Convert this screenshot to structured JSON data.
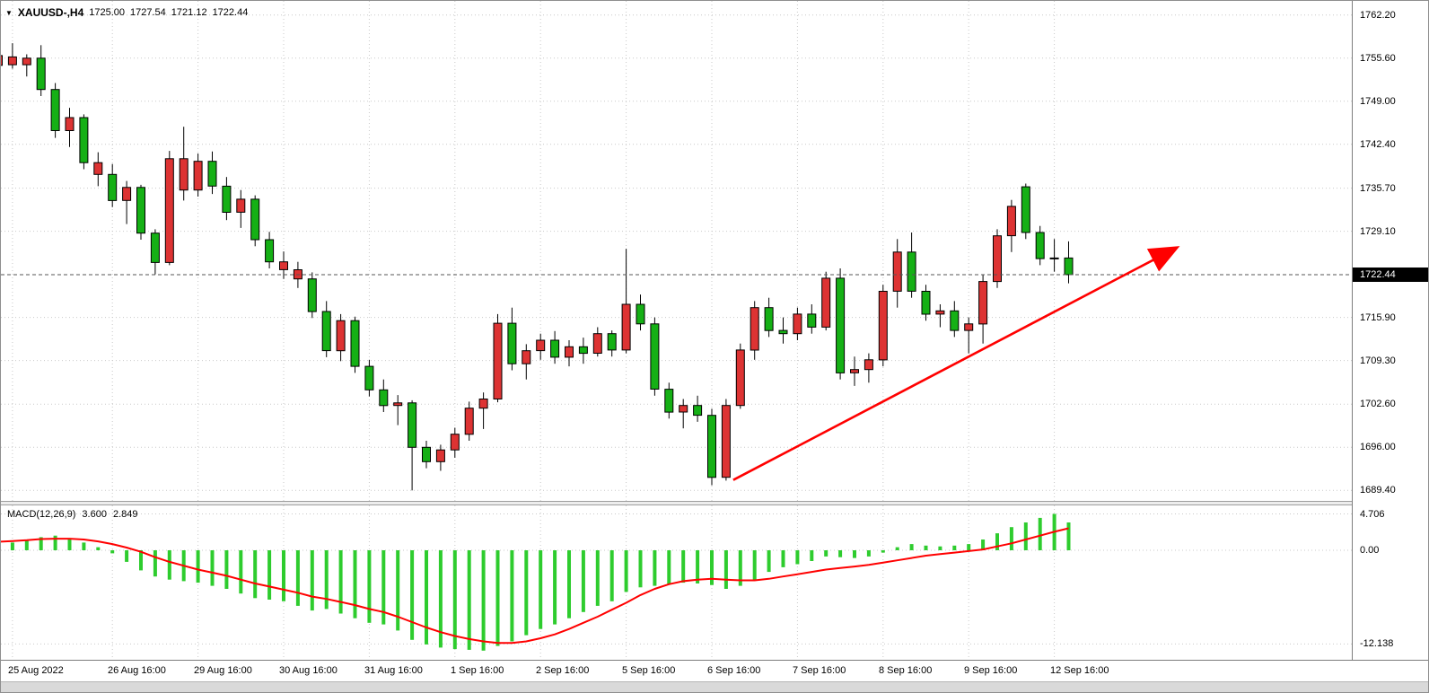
{
  "header": {
    "collapse": "▼",
    "symbol_period": "XAUUSD-,H4",
    "o": "1725.00",
    "h": "1727.54",
    "l": "1721.12",
    "c": "1722.44"
  },
  "indicator_header": {
    "name": "MACD(12,26,9)",
    "macd": "3.600",
    "signal": "2.849"
  },
  "price_tag": "1722.44",
  "colors": {
    "candle_green": "#15b015",
    "candle_red": "#dd3333",
    "macd_histogram": "#2ecc2e",
    "signal_line": "#ff0000",
    "arrow": "#ff0000",
    "grid": "#c9c9c9",
    "price_line": "#555555",
    "tag_bg": "#000000",
    "tag_text": "#ffffff"
  },
  "chart_data": [
    {
      "type": "candlestick",
      "title": "XAUUSD-,H4",
      "symbol": "XAUUSD-",
      "timeframe": "H4",
      "current": {
        "open": 1725.0,
        "high": 1727.54,
        "low": 1721.12,
        "close": 1722.44
      },
      "ylim": [
        1687.8,
        1764.4
      ],
      "y_ticks": [
        {
          "value": 1762.2,
          "label": "1762.20"
        },
        {
          "value": 1755.6,
          "label": "1755.60"
        },
        {
          "value": 1749.0,
          "label": "1749.00"
        },
        {
          "value": 1742.4,
          "label": "1742.40"
        },
        {
          "value": 1735.7,
          "label": "1735.70"
        },
        {
          "value": 1729.1,
          "label": "1729.10"
        },
        {
          "value": 1715.9,
          "label": "1715.90"
        },
        {
          "value": 1709.3,
          "label": "1709.30"
        },
        {
          "value": 1702.6,
          "label": "1702.60"
        },
        {
          "value": 1696.0,
          "label": "1696.00"
        },
        {
          "value": 1689.4,
          "label": "1689.40"
        }
      ],
      "x_ticks": [
        {
          "i": 1,
          "label": "25 Aug 2022"
        },
        {
          "i": 8,
          "label": "26 Aug 16:00"
        },
        {
          "i": 14,
          "label": "29 Aug 16:00"
        },
        {
          "i": 20,
          "label": "30 Aug 16:00"
        },
        {
          "i": 26,
          "label": "31 Aug 16:00"
        },
        {
          "i": 32,
          "label": "1 Sep 16:00"
        },
        {
          "i": 38,
          "label": "2 Sep 16:00"
        },
        {
          "i": 44,
          "label": "5 Sep 16:00"
        },
        {
          "i": 50,
          "label": "6 Sep 16:00"
        },
        {
          "i": 56,
          "label": "7 Sep 16:00"
        },
        {
          "i": 62,
          "label": "8 Sep 16:00"
        },
        {
          "i": 68,
          "label": "9 Sep 16:00"
        },
        {
          "i": 74,
          "label": "12 Sep 16:00"
        }
      ],
      "candles": [
        [
          1756.0,
          1757.5,
          1753.5,
          1754.5,
          "r"
        ],
        [
          1755.8,
          1757.9,
          1754.0,
          1754.6,
          "r"
        ],
        [
          1754.6,
          1756.2,
          1752.8,
          1755.6,
          "r"
        ],
        [
          1755.6,
          1757.6,
          1749.8,
          1750.8,
          "g"
        ],
        [
          1750.8,
          1751.8,
          1743.4,
          1744.5,
          "g"
        ],
        [
          1744.5,
          1748.0,
          1742.0,
          1746.5,
          "r"
        ],
        [
          1746.5,
          1747.0,
          1738.6,
          1739.6,
          "g"
        ],
        [
          1739.6,
          1741.2,
          1736.0,
          1737.8,
          "r"
        ],
        [
          1737.8,
          1739.4,
          1732.8,
          1733.8,
          "g"
        ],
        [
          1733.8,
          1736.8,
          1730.2,
          1735.8,
          "r"
        ],
        [
          1735.8,
          1736.2,
          1727.8,
          1728.8,
          "g"
        ],
        [
          1728.8,
          1729.4,
          1722.5,
          1724.3,
          "g"
        ],
        [
          1724.3,
          1741.4,
          1723.9,
          1740.2,
          "r"
        ],
        [
          1740.2,
          1745.1,
          1733.8,
          1735.4,
          "r"
        ],
        [
          1735.4,
          1741.0,
          1734.4,
          1739.8,
          "r"
        ],
        [
          1739.8,
          1741.3,
          1734.8,
          1736.0,
          "g"
        ],
        [
          1736.0,
          1737.4,
          1730.8,
          1732.0,
          "g"
        ],
        [
          1732.0,
          1735.4,
          1729.6,
          1734.0,
          "r"
        ],
        [
          1734.0,
          1734.6,
          1726.8,
          1727.8,
          "g"
        ],
        [
          1727.8,
          1729.0,
          1723.4,
          1724.4,
          "g"
        ],
        [
          1724.4,
          1726.0,
          1721.8,
          1723.2,
          "r"
        ],
        [
          1723.2,
          1724.4,
          1720.4,
          1721.8,
          "r"
        ],
        [
          1721.8,
          1722.8,
          1715.8,
          1716.8,
          "g"
        ],
        [
          1716.8,
          1718.4,
          1709.8,
          1710.8,
          "g"
        ],
        [
          1710.8,
          1716.4,
          1709.2,
          1715.4,
          "r"
        ],
        [
          1715.4,
          1716.0,
          1707.4,
          1708.4,
          "g"
        ],
        [
          1708.4,
          1709.4,
          1703.8,
          1704.8,
          "g"
        ],
        [
          1704.8,
          1706.4,
          1701.4,
          1702.4,
          "g"
        ],
        [
          1702.4,
          1704.0,
          1699.4,
          1702.8,
          "r"
        ],
        [
          1702.8,
          1703.2,
          1689.4,
          1696.0,
          "g"
        ],
        [
          1696.0,
          1697.0,
          1692.8,
          1693.8,
          "g"
        ],
        [
          1693.8,
          1696.4,
          1692.4,
          1695.6,
          "r"
        ],
        [
          1695.6,
          1699.0,
          1694.4,
          1698.0,
          "r"
        ],
        [
          1698.0,
          1703.0,
          1697.0,
          1702.0,
          "r"
        ],
        [
          1702.0,
          1704.4,
          1698.8,
          1703.4,
          "r"
        ],
        [
          1703.4,
          1716.4,
          1702.9,
          1715.0,
          "r"
        ],
        [
          1715.0,
          1717.4,
          1707.8,
          1708.8,
          "g"
        ],
        [
          1708.8,
          1711.8,
          1706.4,
          1710.8,
          "r"
        ],
        [
          1710.8,
          1713.4,
          1709.4,
          1712.4,
          "r"
        ],
        [
          1712.4,
          1713.8,
          1708.8,
          1709.8,
          "g"
        ],
        [
          1709.8,
          1712.4,
          1708.4,
          1711.4,
          "r"
        ],
        [
          1711.4,
          1712.8,
          1708.8,
          1710.4,
          "g"
        ],
        [
          1710.4,
          1714.4,
          1709.9,
          1713.4,
          "r"
        ],
        [
          1713.4,
          1713.9,
          1709.9,
          1710.9,
          "g"
        ],
        [
          1710.9,
          1726.4,
          1710.4,
          1717.9,
          "r"
        ],
        [
          1717.9,
          1719.4,
          1713.9,
          1714.9,
          "g"
        ],
        [
          1714.9,
          1715.9,
          1703.9,
          1704.9,
          "g"
        ],
        [
          1704.9,
          1705.9,
          1700.4,
          1701.4,
          "g"
        ],
        [
          1701.4,
          1703.4,
          1698.9,
          1702.4,
          "r"
        ],
        [
          1702.4,
          1703.9,
          1699.9,
          1700.9,
          "g"
        ],
        [
          1700.9,
          1701.9,
          1690.2,
          1691.4,
          "g"
        ],
        [
          1691.4,
          1703.4,
          1690.9,
          1702.4,
          "r"
        ],
        [
          1702.4,
          1711.9,
          1701.9,
          1710.9,
          "r"
        ],
        [
          1710.9,
          1718.4,
          1709.4,
          1717.4,
          "r"
        ],
        [
          1717.4,
          1718.9,
          1712.9,
          1713.9,
          "g"
        ],
        [
          1713.9,
          1715.9,
          1711.9,
          1713.4,
          "g"
        ],
        [
          1713.4,
          1717.4,
          1712.4,
          1716.4,
          "r"
        ],
        [
          1716.4,
          1717.9,
          1713.4,
          1714.4,
          "g"
        ],
        [
          1714.4,
          1722.9,
          1713.9,
          1721.9,
          "r"
        ],
        [
          1721.9,
          1723.4,
          1706.4,
          1707.4,
          "g"
        ],
        [
          1707.4,
          1709.9,
          1705.4,
          1707.9,
          "r"
        ],
        [
          1707.9,
          1710.4,
          1705.9,
          1709.4,
          "r"
        ],
        [
          1709.4,
          1720.9,
          1708.4,
          1719.9,
          "r"
        ],
        [
          1719.9,
          1727.9,
          1717.4,
          1725.9,
          "r"
        ],
        [
          1725.9,
          1728.9,
          1718.9,
          1719.9,
          "g"
        ],
        [
          1719.9,
          1720.9,
          1715.4,
          1716.4,
          "g"
        ],
        [
          1716.4,
          1717.9,
          1714.4,
          1716.9,
          "r"
        ],
        [
          1716.9,
          1718.4,
          1712.9,
          1713.9,
          "g"
        ],
        [
          1713.9,
          1715.9,
          1710.4,
          1714.9,
          "r"
        ],
        [
          1714.9,
          1722.4,
          1711.9,
          1721.4,
          "r"
        ],
        [
          1721.4,
          1729.4,
          1720.4,
          1728.4,
          "r"
        ],
        [
          1728.4,
          1733.9,
          1725.9,
          1732.9,
          "r"
        ],
        [
          1735.9,
          1736.4,
          1727.9,
          1728.9,
          "g"
        ],
        [
          1728.9,
          1729.9,
          1723.9,
          1724.9,
          "g"
        ],
        [
          1724.9,
          1727.9,
          1722.9,
          1725.0,
          "r"
        ],
        [
          1725.0,
          1727.54,
          1721.12,
          1722.44,
          "g"
        ]
      ],
      "annotations": {
        "trend_arrow": {
          "from": {
            "i": 51.5,
            "price": 1691.0
          },
          "to": {
            "i": 82.5,
            "price": 1726.5
          },
          "color": "#ff0000"
        }
      }
    },
    {
      "type": "bar",
      "title": "MACD(12,26,9)",
      "values": {
        "macd": 3.6,
        "signal": 2.849
      },
      "ylim": [
        -14.2,
        5.8
      ],
      "y_ticks": [
        {
          "value": 4.706,
          "label": "4.706"
        },
        {
          "value": 0,
          "label": "0.00"
        },
        {
          "value": -12.138,
          "label": "-12.138"
        }
      ],
      "histogram": [
        0.9,
        1.0,
        1.4,
        1.7,
        1.9,
        1.5,
        1.0,
        0.4,
        -0.4,
        -1.5,
        -2.6,
        -3.4,
        -3.8,
        -4.0,
        -4.2,
        -4.6,
        -5.0,
        -5.6,
        -6.2,
        -6.4,
        -6.6,
        -7.2,
        -7.8,
        -7.6,
        -8.2,
        -8.8,
        -9.4,
        -9.6,
        -10.4,
        -11.6,
        -12.2,
        -12.6,
        -12.8,
        -12.9,
        -13.0,
        -12.4,
        -11.8,
        -11.0,
        -10.2,
        -9.6,
        -8.8,
        -8.0,
        -7.2,
        -6.6,
        -5.4,
        -4.8,
        -4.6,
        -4.4,
        -4.2,
        -4.3,
        -4.5,
        -5.0,
        -4.6,
        -3.8,
        -2.8,
        -2.2,
        -1.8,
        -1.4,
        -0.8,
        -0.9,
        -1.0,
        -0.8,
        -0.3,
        0.4,
        0.8,
        0.6,
        0.5,
        0.6,
        0.8,
        1.4,
        2.2,
        3.0,
        3.6,
        4.2,
        4.706,
        3.6
      ],
      "signal": [
        1.1,
        1.2,
        1.3,
        1.45,
        1.5,
        1.5,
        1.4,
        1.15,
        0.8,
        0.35,
        -0.2,
        -0.9,
        -1.5,
        -2.0,
        -2.5,
        -2.9,
        -3.3,
        -3.8,
        -4.3,
        -4.7,
        -5.1,
        -5.5,
        -6.0,
        -6.3,
        -6.7,
        -7.1,
        -7.6,
        -8.0,
        -8.6,
        -9.3,
        -10.0,
        -10.6,
        -11.1,
        -11.5,
        -11.8,
        -12.0,
        -12.0,
        -11.8,
        -11.4,
        -10.9,
        -10.2,
        -9.4,
        -8.6,
        -7.7,
        -6.8,
        -5.8,
        -5.0,
        -4.4,
        -4.0,
        -3.8,
        -3.7,
        -3.8,
        -3.9,
        -3.9,
        -3.7,
        -3.4,
        -3.1,
        -2.8,
        -2.5,
        -2.3,
        -2.1,
        -1.9,
        -1.6,
        -1.3,
        -1.0,
        -0.7,
        -0.5,
        -0.3,
        -0.1,
        0.1,
        0.5,
        0.9,
        1.4,
        1.9,
        2.4,
        2.849
      ]
    }
  ]
}
